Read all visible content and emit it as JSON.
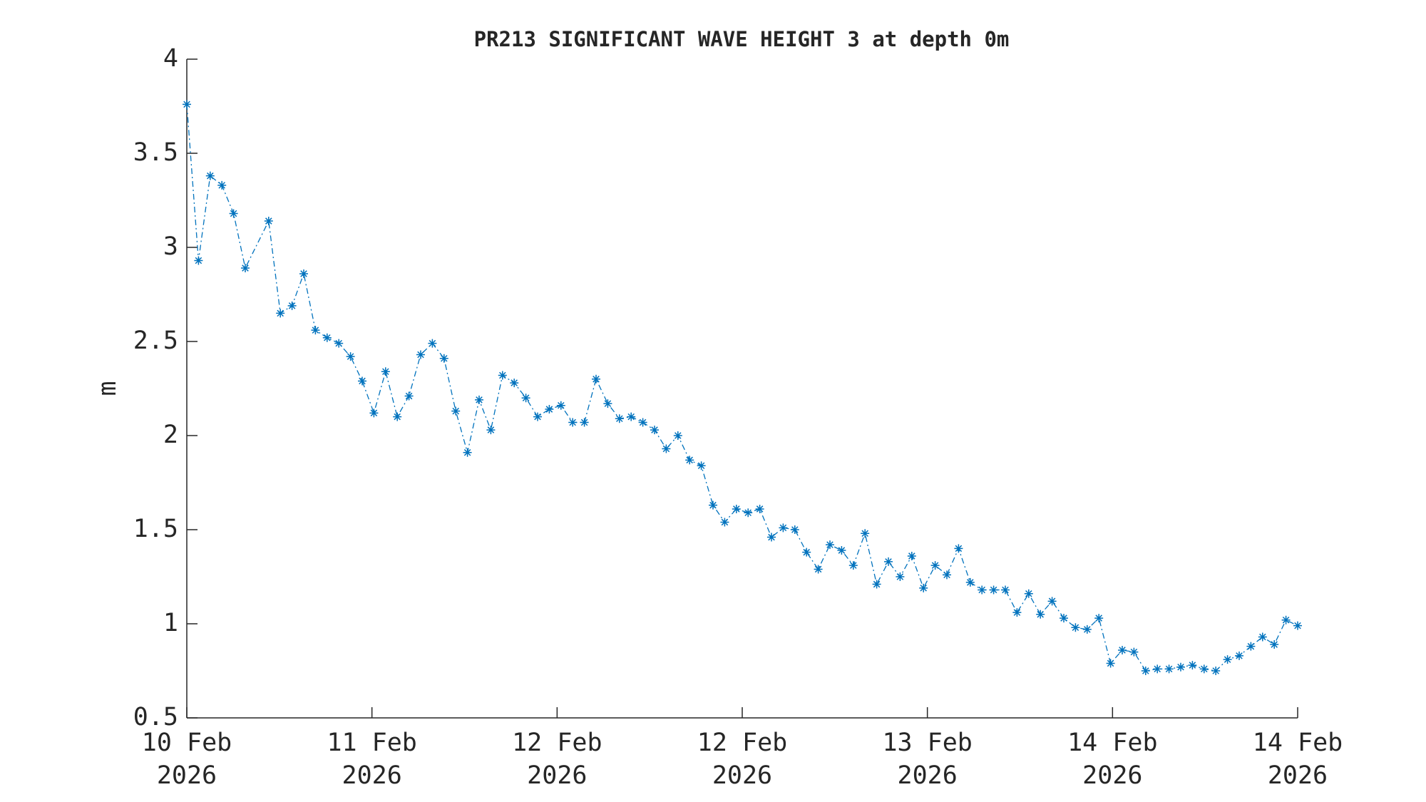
{
  "chart_data": {
    "type": "line",
    "title": "PR213 SIGNIFICANT WAVE HEIGHT 3 at depth 0m",
    "ylabel": "m",
    "x": [
      0,
      1,
      2,
      3,
      4,
      5,
      7,
      8,
      9,
      10,
      11,
      12,
      13,
      14,
      15,
      16,
      17,
      18,
      19,
      20,
      21,
      22,
      23,
      24,
      25,
      26,
      27,
      28,
      29,
      30,
      31,
      32,
      33,
      34,
      35,
      36,
      37,
      38,
      39,
      40,
      41,
      42,
      43,
      44,
      45,
      46,
      47,
      48,
      49,
      50,
      51,
      52,
      53,
      54,
      55,
      56,
      57,
      58,
      59,
      60,
      61,
      62,
      63,
      64,
      65,
      66,
      67,
      68,
      69,
      70,
      71,
      72,
      73,
      74,
      75,
      76,
      77,
      78,
      79,
      80,
      81,
      82,
      83,
      84,
      85,
      86,
      87,
      88,
      89,
      90,
      91,
      92,
      93,
      94,
      95
    ],
    "series": [
      {
        "name": "PR213 SIGNIFICANT WAVE HEIGHT 3",
        "color": "#0072bd",
        "values": [
          3.76,
          2.93,
          3.38,
          3.33,
          3.18,
          2.89,
          3.14,
          2.65,
          2.69,
          2.86,
          2.56,
          2.52,
          2.49,
          2.42,
          2.29,
          2.12,
          2.34,
          2.1,
          2.21,
          2.43,
          2.49,
          2.41,
          2.13,
          1.91,
          2.19,
          2.03,
          2.32,
          2.28,
          2.2,
          2.1,
          2.14,
          2.16,
          2.07,
          2.07,
          2.3,
          2.17,
          2.09,
          2.1,
          2.07,
          2.03,
          1.93,
          2.0,
          1.87,
          1.84,
          1.63,
          1.54,
          1.61,
          1.59,
          1.61,
          1.46,
          1.51,
          1.5,
          1.38,
          1.29,
          1.42,
          1.39,
          1.31,
          1.48,
          1.21,
          1.33,
          1.25,
          1.36,
          1.19,
          1.31,
          1.26,
          1.4,
          1.22,
          1.18,
          1.18,
          1.18,
          1.06,
          1.16,
          1.05,
          1.12,
          1.03,
          0.98,
          0.97,
          1.03,
          0.79,
          0.86,
          0.85,
          0.75,
          0.76,
          0.76,
          0.77,
          0.78,
          0.76,
          0.75,
          0.81,
          0.83,
          0.88,
          0.93,
          0.89,
          1.02,
          0.99
        ]
      }
    ],
    "xlim": [
      0,
      95
    ],
    "xticks": [
      {
        "value": 0,
        "label": "10 Feb 2026"
      },
      {
        "value": 15.833,
        "label": "11 Feb 2026"
      },
      {
        "value": 31.667,
        "label": "12 Feb 2026"
      },
      {
        "value": 47.5,
        "label": "12 Feb 2026"
      },
      {
        "value": 63.333,
        "label": "13 Feb 2026"
      },
      {
        "value": 79.167,
        "label": "14 Feb 2026"
      },
      {
        "value": 95,
        "label": "14 Feb 2026"
      }
    ],
    "ylim": [
      0.5,
      4
    ],
    "yticks": [
      0.5,
      1,
      1.5,
      2,
      2.5,
      3,
      3.5,
      4
    ],
    "grid": false
  }
}
